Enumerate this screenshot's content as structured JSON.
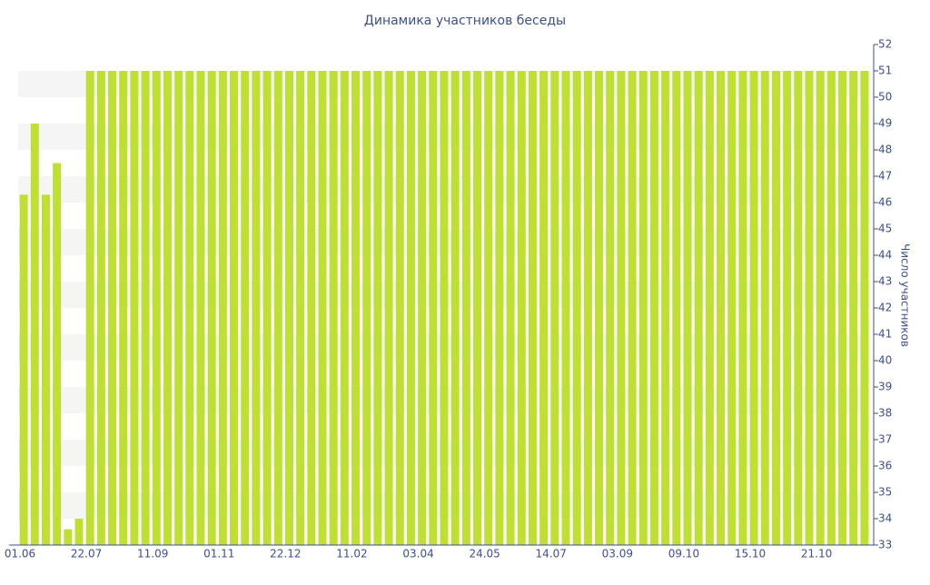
{
  "chart_data": {
    "type": "bar",
    "title": "Динамика участников беседы",
    "y_label": "Число участников",
    "y_axis_side": "right",
    "grid": "bands",
    "color": "#bfdf33",
    "categories": [
      "01.06",
      null,
      null,
      null,
      null,
      null,
      "22.07",
      null,
      null,
      null,
      null,
      null,
      "11.09",
      null,
      null,
      null,
      null,
      null,
      "01.11",
      null,
      null,
      null,
      null,
      null,
      "22.12",
      null,
      null,
      null,
      null,
      null,
      "11.02",
      null,
      null,
      null,
      null,
      null,
      "03.04",
      null,
      null,
      null,
      null,
      null,
      "24.05",
      null,
      null,
      null,
      null,
      null,
      "14.07",
      null,
      null,
      null,
      null,
      null,
      "03.09",
      null,
      null,
      null,
      null,
      null,
      "09.10",
      null,
      null,
      null,
      null,
      null,
      "15.10",
      null,
      null,
      null,
      null,
      null,
      "21.10",
      null,
      null,
      null,
      null
    ],
    "values": [
      46.3,
      49,
      46.3,
      47.5,
      33.6,
      34,
      51,
      51,
      51,
      51,
      51,
      51,
      51,
      51,
      51,
      51,
      51,
      51,
      51,
      51,
      51,
      51,
      51,
      51,
      51,
      51,
      51,
      51,
      51,
      51,
      51,
      51,
      51,
      51,
      51,
      51,
      51,
      51,
      51,
      51,
      51,
      51,
      51,
      51,
      51,
      51,
      51,
      51,
      51,
      51,
      51,
      51,
      51,
      51,
      51,
      51,
      51,
      51,
      51,
      51,
      51,
      51,
      51,
      51,
      51,
      51,
      51,
      51,
      51,
      51,
      51,
      51,
      51,
      51,
      51,
      51,
      51
    ],
    "ylim": [
      33,
      52
    ],
    "yticks": [
      33,
      34,
      35,
      36,
      37,
      38,
      39,
      40,
      41,
      42,
      43,
      44,
      45,
      46,
      47,
      48,
      49,
      50,
      51,
      52
    ]
  }
}
